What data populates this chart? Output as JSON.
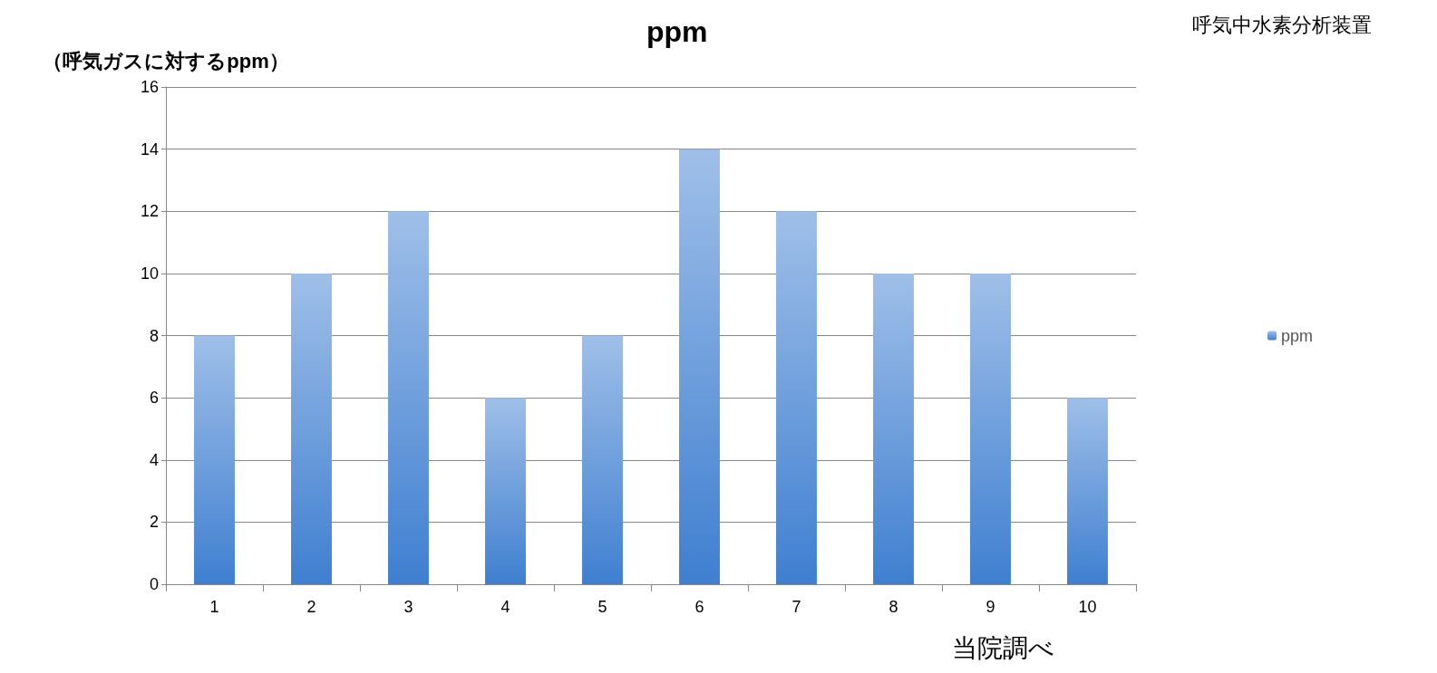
{
  "chart_data": {
    "type": "bar",
    "title": "ppm",
    "ylabel": "（呼気ガスに対するppm）",
    "annotations": [
      "呼気中水素分析装置",
      "当院調べ"
    ],
    "categories": [
      "1",
      "2",
      "3",
      "4",
      "5",
      "6",
      "7",
      "8",
      "9",
      "10"
    ],
    "series": [
      {
        "name": "ppm",
        "color": "#3f7fd0",
        "values": [
          8,
          10,
          12,
          6,
          8,
          14,
          12,
          10,
          10,
          6
        ]
      }
    ],
    "ylim": [
      0,
      16
    ],
    "yticks": [
      0,
      2,
      4,
      6,
      8,
      10,
      12,
      14,
      16
    ],
    "grid": "y",
    "legend": "right"
  }
}
